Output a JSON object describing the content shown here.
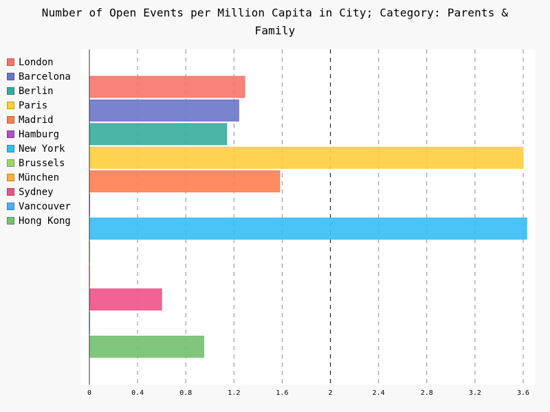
{
  "title": "Number of Open Events per Million Capita in City; Category: Parents & Family",
  "chart_data": {
    "type": "bar",
    "orientation": "horizontal",
    "title": "Number of Open Events per Million Capita in City; Category: Parents & Family",
    "xlabel": "",
    "ylabel": "",
    "xlim": [
      0,
      3.6
    ],
    "x_ticks": [
      "0",
      "0.4",
      "0.8",
      "1.2",
      "1.6",
      "2",
      "2.4",
      "2.8",
      "3.2",
      "3.6"
    ],
    "grid": "vertical dashed",
    "legend_placement": "left",
    "categories": [
      "London",
      "Barcelona",
      "Berlin",
      "Paris",
      "Madrid",
      "Hamburg",
      "New York",
      "Brussels",
      "München",
      "Sydney",
      "Vancouver",
      "Hong Kong"
    ],
    "values": [
      1.29,
      1.24,
      1.14,
      3.6,
      1.58,
      0.0,
      3.63,
      0.0,
      0.0,
      0.6,
      0.0,
      0.95
    ],
    "colors": [
      "#f8766d",
      "#6c76c8",
      "#35ae9f",
      "#ffcd3c",
      "#ff7f50",
      "#ae52c6",
      "#36bcf5",
      "#a5d36b",
      "#ffb03b",
      "#ef5288",
      "#52acf5",
      "#72c16f"
    ]
  }
}
